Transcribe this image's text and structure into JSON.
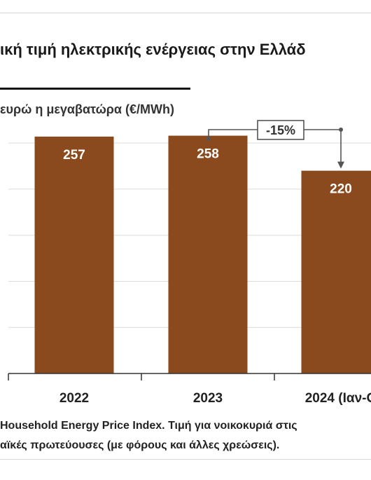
{
  "title": "ική τιμή ηλεκτρικής ενέργειας στην Ελλάδ",
  "footnote": {
    "line1": "Household Energy Price Index. Τιμή για νοικοκυριά στις",
    "line2": "αϊκές πρωτεύουσες (με φόρους και άλλες χρεώσεις)."
  },
  "colors": {
    "bar": "#8B4A1E",
    "bar_label": "#ffffff",
    "grid": "#dcdcdc",
    "axis": "#333333",
    "annotation": "#555555"
  },
  "chart_data": {
    "type": "bar",
    "ylabel": "ευρώ η μεγαβατώρα (€/MWh)",
    "categories": [
      "2022",
      "2023",
      "2024 (Ιαν-Ο"
    ],
    "values": [
      257,
      258,
      220
    ],
    "ylim": [
      0,
      260
    ],
    "grid": true,
    "annotation": {
      "label": "-15%",
      "from": "2023",
      "to": "2024 (Ιαν-Ο"
    }
  }
}
